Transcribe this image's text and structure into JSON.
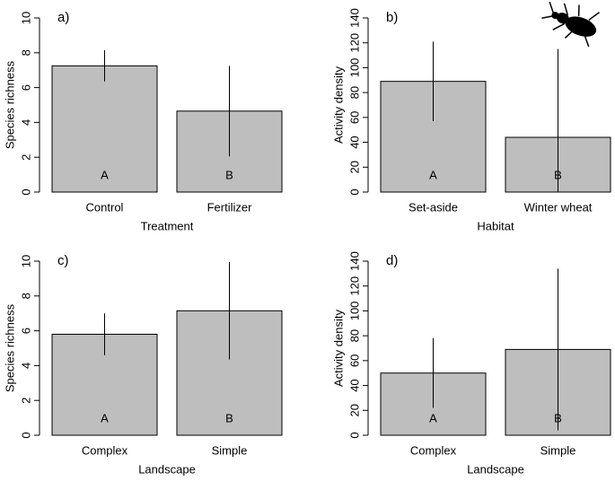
{
  "chart_data": [
    {
      "type": "bar",
      "panel_label": "a)",
      "x_label": "Treatment",
      "y_label": "Species richness",
      "categories": [
        "Control",
        "Fertilizer"
      ],
      "values": [
        7.25,
        4.65
      ],
      "errors": [
        0.9,
        2.6
      ],
      "annotations": [
        "A",
        "B"
      ],
      "color": "#bebebe",
      "ylim": [
        0,
        10
      ],
      "yticks": [
        0,
        2,
        4,
        6,
        8,
        10
      ]
    },
    {
      "type": "bar",
      "panel_label": "b)",
      "x_label": "Habitat",
      "y_label": "Activity density",
      "categories": [
        "Set-aside",
        "Winter wheat"
      ],
      "values": [
        89,
        44
      ],
      "errors": [
        32,
        71
      ],
      "annotations": [
        "A",
        "B"
      ],
      "color": "#bebebe",
      "ylim": [
        0,
        140
      ],
      "yticks": [
        0,
        20,
        40,
        60,
        80,
        100,
        120,
        140
      ]
    },
    {
      "type": "bar",
      "panel_label": "c)",
      "x_label": "Landscape",
      "y_label": "Species richness",
      "categories": [
        "Complex",
        "Simple"
      ],
      "values": [
        5.8,
        7.15
      ],
      "errors": [
        1.2,
        2.8
      ],
      "annotations": [
        "A",
        "B"
      ],
      "color": "#bebebe",
      "ylim": [
        0,
        10
      ],
      "yticks": [
        0,
        2,
        4,
        6,
        8,
        10
      ]
    },
    {
      "type": "bar",
      "panel_label": "d)",
      "x_label": "Landscape",
      "y_label": "Activity density",
      "categories": [
        "Complex",
        "Simple"
      ],
      "values": [
        50,
        69
      ],
      "errors": [
        28,
        65
      ],
      "annotations": [
        "A",
        "B"
      ],
      "color": "#bebebe",
      "ylim": [
        0,
        140
      ],
      "yticks": [
        0,
        20,
        40,
        60,
        80,
        100,
        120,
        140
      ]
    }
  ]
}
